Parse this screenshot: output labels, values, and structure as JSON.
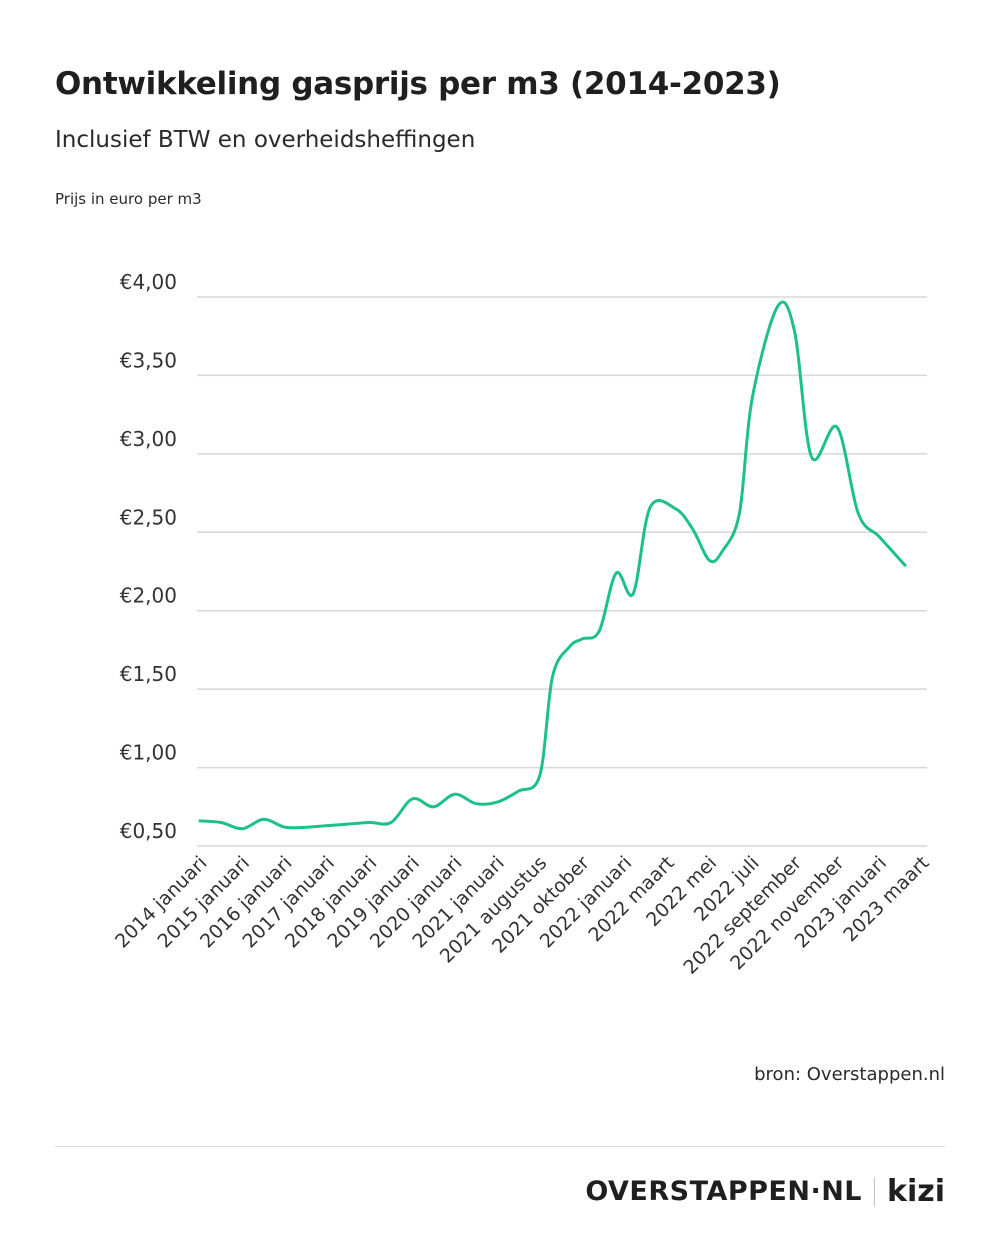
{
  "header": {
    "title": "Ontwikkeling gasprijs per m3 (2014-2023)",
    "subtitle": "Inclusief BTW en overheidsheffingen",
    "ylabel": "Prijs in euro per m3"
  },
  "footer": {
    "source": "bron: Overstappen.nl",
    "logo_main": "OVERSTAPPEN·NL",
    "logo_partner": "kizi"
  },
  "colors": {
    "line": "#1dbf8a",
    "grid": "#d8d8d8",
    "text": "#222222"
  },
  "chart_data": {
    "type": "line",
    "title": "Ontwikkeling gasprijs per m3 (2014-2023)",
    "subtitle": "Inclusief BTW en overheidsheffingen",
    "ylabel": "Prijs in euro per m3",
    "xlabel": "",
    "ylim": [
      0.5,
      4.0
    ],
    "yticks": [
      0.5,
      1.0,
      1.5,
      2.0,
      2.5,
      3.0,
      3.5,
      4.0
    ],
    "ytick_labels": [
      "€0,50",
      "€1,00",
      "€1,50",
      "€2,00",
      "€2,50",
      "€3,00",
      "€3,50",
      "€4,00"
    ],
    "grid": true,
    "categories": [
      "2014 januari",
      "2015 januari",
      "2016 januari",
      "2017 januari",
      "2018 januari",
      "2019 januari",
      "2020 januari",
      "2021 januari",
      "2021 augustus",
      "2021 oktober",
      "2022 januari",
      "2022 maart",
      "2022 mei",
      "2022 juli",
      "2022 september",
      "2022 november",
      "2023 januari",
      "2023 maart"
    ],
    "points": [
      {
        "x": 0.0,
        "y": 0.66
      },
      {
        "x": 0.5,
        "y": 0.65
      },
      {
        "x": 1.0,
        "y": 0.61
      },
      {
        "x": 1.5,
        "y": 0.67
      },
      {
        "x": 2.0,
        "y": 0.62
      },
      {
        "x": 2.5,
        "y": 0.62
      },
      {
        "x": 3.0,
        "y": 0.63
      },
      {
        "x": 3.5,
        "y": 0.64
      },
      {
        "x": 4.0,
        "y": 0.65
      },
      {
        "x": 4.5,
        "y": 0.65
      },
      {
        "x": 5.0,
        "y": 0.8
      },
      {
        "x": 5.5,
        "y": 0.75
      },
      {
        "x": 6.0,
        "y": 0.83
      },
      {
        "x": 6.5,
        "y": 0.77
      },
      {
        "x": 7.0,
        "y": 0.78
      },
      {
        "x": 7.5,
        "y": 0.85
      },
      {
        "x": 8.0,
        "y": 0.95
      },
      {
        "x": 8.3,
        "y": 1.58
      },
      {
        "x": 8.7,
        "y": 1.77
      },
      {
        "x": 9.0,
        "y": 1.82
      },
      {
        "x": 9.4,
        "y": 1.87
      },
      {
        "x": 9.8,
        "y": 2.24
      },
      {
        "x": 10.2,
        "y": 2.11
      },
      {
        "x": 10.6,
        "y": 2.66
      },
      {
        "x": 11.2,
        "y": 2.65
      },
      {
        "x": 11.6,
        "y": 2.52
      },
      {
        "x": 12.0,
        "y": 2.32
      },
      {
        "x": 12.3,
        "y": 2.38
      },
      {
        "x": 12.7,
        "y": 2.62
      },
      {
        "x": 13.0,
        "y": 3.35
      },
      {
        "x": 13.6,
        "y": 3.94
      },
      {
        "x": 14.0,
        "y": 3.78
      },
      {
        "x": 14.4,
        "y": 2.98
      },
      {
        "x": 15.0,
        "y": 3.17
      },
      {
        "x": 15.5,
        "y": 2.62
      },
      {
        "x": 16.0,
        "y": 2.47
      },
      {
        "x": 16.6,
        "y": 2.29
      }
    ]
  }
}
